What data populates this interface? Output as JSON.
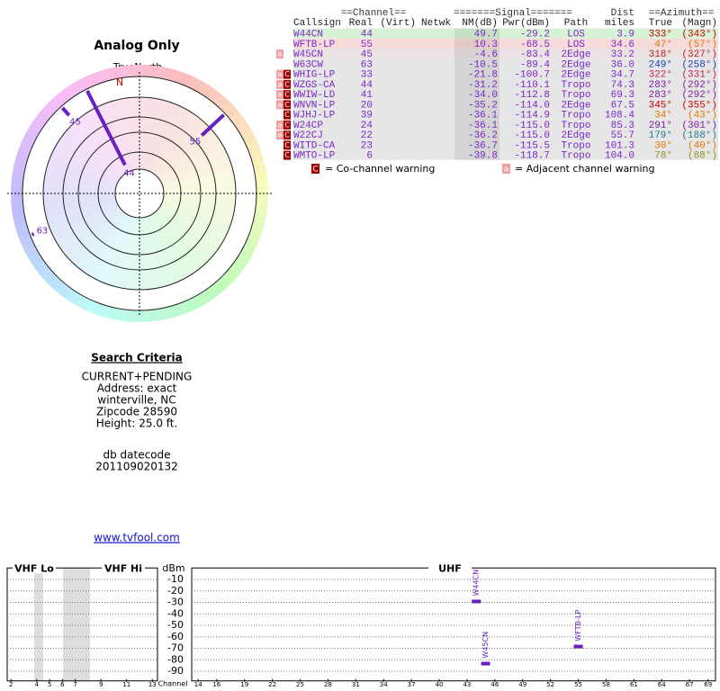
{
  "radar": {
    "title": "Analog Only",
    "north_label": "TrueNorth",
    "north": "N",
    "markers": [
      {
        "label": "44",
        "azimuth": 333,
        "nm": 49.7
      },
      {
        "label": "45",
        "azimuth": 318,
        "nm": -4.6
      },
      {
        "label": "55",
        "azimuth": 47,
        "nm": 10.3
      },
      {
        "label": "63",
        "azimuth": 249,
        "nm": -10.5
      }
    ]
  },
  "criteria": {
    "title": "Search Criteria",
    "lines": [
      "CURRENT+PENDING",
      "Address: exact",
      "winterville, NC",
      "Zipcode 28590",
      "Height: 25.0 ft."
    ],
    "datecode": [
      "db datecode",
      "201109020132"
    ]
  },
  "link": "www.tvfool.com",
  "table": {
    "group_headers": [
      "==Channel==",
      "=======Signal=======",
      "Dist",
      "==Azimuth=="
    ],
    "headers": [
      "Callsign",
      "Real",
      "(Virt)",
      "Netwk",
      "NM(dB)",
      "Pwr(dBm)",
      "Path",
      "miles",
      "True",
      "(Magn)"
    ],
    "rows": [
      {
        "callsign": "W44CN",
        "real": "44",
        "nm": "49.7",
        "pwr": "-29.2",
        "path": "LOS",
        "dist": "3.9",
        "true": "333°",
        "magn": "(343°)",
        "bg": "#d6f3d6",
        "az_color": "#d00000"
      },
      {
        "callsign": "WFTB-LP",
        "real": "55",
        "nm": "10.3",
        "pwr": "-68.5",
        "path": "LOS",
        "dist": "34.6",
        "true": "47°",
        "magn": "(57°)",
        "bg": "#f7dada",
        "az_color": "#e07800"
      },
      {
        "warn": [
          "a"
        ],
        "callsign": "W45CN",
        "real": "45",
        "nm": "-4.6",
        "pwr": "-83.4",
        "path": "2Edge",
        "dist": "33.2",
        "true": "318°",
        "magn": "(327°)",
        "bg": "#ebe3e3",
        "az_color": "#c02020"
      },
      {
        "callsign": "W63CW",
        "real": "63",
        "nm": "-10.5",
        "pwr": "-89.4",
        "path": "2Edge",
        "dist": "36.0",
        "true": "249°",
        "magn": "(258°)",
        "bg": "#e6e6e6",
        "az_color": "#2040b0"
      },
      {
        "warn": [
          "a",
          "C"
        ],
        "callsign": "WHIG-LP",
        "real": "33",
        "nm": "-21.8",
        "pwr": "-100.7",
        "path": "2Edge",
        "dist": "34.7",
        "true": "322°",
        "magn": "(331°)",
        "bg": "#e6e6e6",
        "az_color": "#c02060"
      },
      {
        "warn": [
          "a",
          "C"
        ],
        "callsign": "WZGS-CA",
        "real": "44",
        "nm": "-31.2",
        "pwr": "-110.1",
        "path": "Tropo",
        "dist": "74.3",
        "true": "283°",
        "magn": "(292°)",
        "bg": "#e6e6e6",
        "az_color": "#8020a0"
      },
      {
        "warn": [
          "a",
          "C"
        ],
        "callsign": "WWIW-LD",
        "real": "41",
        "nm": "-34.0",
        "pwr": "-112.8",
        "path": "Tropo",
        "dist": "69.3",
        "true": "283°",
        "magn": "(292°)",
        "bg": "#e6e6e6",
        "az_color": "#8020a0"
      },
      {
        "warn": [
          "a",
          "C"
        ],
        "callsign": "WNVN-LP",
        "real": "20",
        "nm": "-35.2",
        "pwr": "-114.0",
        "path": "2Edge",
        "dist": "67.5",
        "true": "345°",
        "magn": "(355°)",
        "bg": "#e6e6e6",
        "az_color": "#d00000"
      },
      {
        "warn": [
          "C"
        ],
        "callsign": "WJHJ-LP",
        "real": "39",
        "nm": "-36.1",
        "pwr": "-114.9",
        "path": "Tropo",
        "dist": "108.4",
        "true": "34°",
        "magn": "(43°)",
        "bg": "#e6e6e6",
        "az_color": "#e07800"
      },
      {
        "warn": [
          "a",
          "C"
        ],
        "callsign": "W24CP",
        "real": "24",
        "nm": "-36.1",
        "pwr": "-115.0",
        "path": "Tropo",
        "dist": "85.3",
        "true": "291°",
        "magn": "(301°)",
        "bg": "#e6e6e6",
        "az_color": "#8020a0"
      },
      {
        "warn": [
          "a",
          "C"
        ],
        "callsign": "W22CJ",
        "real": "22",
        "nm": "-36.2",
        "pwr": "-115.0",
        "path": "2Edge",
        "dist": "55.7",
        "true": "179°",
        "magn": "(188°)",
        "bg": "#e6e6e6",
        "az_color": "#208090"
      },
      {
        "warn": [
          "C"
        ],
        "callsign": "WITD-CA",
        "real": "23",
        "nm": "-36.7",
        "pwr": "-115.5",
        "path": "Tropo",
        "dist": "101.3",
        "true": "30°",
        "magn": "(40°)",
        "bg": "#e6e6e6",
        "az_color": "#e07800"
      },
      {
        "warn": [
          "C"
        ],
        "callsign": "WMTO-LP",
        "real": "6",
        "nm": "-39.8",
        "pwr": "-118.7",
        "path": "Tropo",
        "dist": "104.0",
        "true": "78°",
        "magn": "(88°)",
        "bg": "#e6e6e6",
        "az_color": "#909020"
      }
    ]
  },
  "legend": {
    "co_icon": "C",
    "co": "= Co-channel warning",
    "adj_icon": "a",
    "adj": "= Adjacent channel warning"
  },
  "chart_data": {
    "type": "spectrum",
    "y_label": "dBm",
    "x_label": "Channel",
    "color": "#6a1fc2",
    "ylim": [
      -100,
      0
    ],
    "yticks": [
      -10,
      -20,
      -30,
      -40,
      -50,
      -60,
      -70,
      -80,
      -90
    ],
    "vhf": {
      "label_lo": "VHF Lo",
      "label_hi": "VHF Hi",
      "xlim": [
        1.7,
        13.4
      ],
      "xticks": [
        2,
        4,
        5,
        6,
        7,
        9,
        11,
        13
      ]
    },
    "uhf": {
      "label": "UHF",
      "xlim": [
        13.3,
        69.8
      ],
      "xticks": [
        14,
        16,
        19,
        22,
        25,
        28,
        31,
        34,
        37,
        40,
        43,
        46,
        49,
        52,
        55,
        58,
        61,
        64,
        67,
        69
      ]
    },
    "x": [
      44,
      45,
      55
    ],
    "values": [
      -29.2,
      -83.4,
      -68.5
    ],
    "labels": [
      "W44CN",
      "W45CN",
      "WFTB-LP"
    ]
  }
}
